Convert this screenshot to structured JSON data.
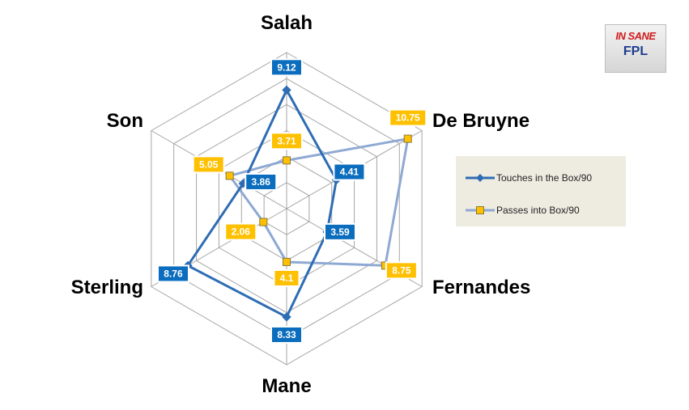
{
  "logo": {
    "line1": "IN SANE",
    "line2": "FPL"
  },
  "chart_data": {
    "type": "radar",
    "categories": [
      "Salah",
      "De Bruyne",
      "Fernandes",
      "Mane",
      "Sterling",
      "Son"
    ],
    "rmax": 12,
    "rings": 6,
    "grid": true,
    "legend_position": "right",
    "series": [
      {
        "name": "Touches in the Box/90",
        "values": [
          9.12,
          4.41,
          3.59,
          8.33,
          8.76,
          3.86
        ],
        "color": "#2e6db4",
        "label_bg": "#0b6dbd",
        "marker": "diamond"
      },
      {
        "name": "Passes into Box/90",
        "values": [
          3.71,
          10.75,
          8.75,
          4.1,
          2.06,
          5.05
        ],
        "color": "#8ea9d3",
        "label_bg": "#ffc000",
        "marker": "square"
      }
    ],
    "value_labels": [
      [
        "9.12",
        "4.41",
        "3.59",
        "8.33",
        "8.76",
        "3.86"
      ],
      [
        "3.71",
        "10.75",
        "8.75",
        "4.1",
        "2.06",
        "5.05"
      ]
    ]
  }
}
